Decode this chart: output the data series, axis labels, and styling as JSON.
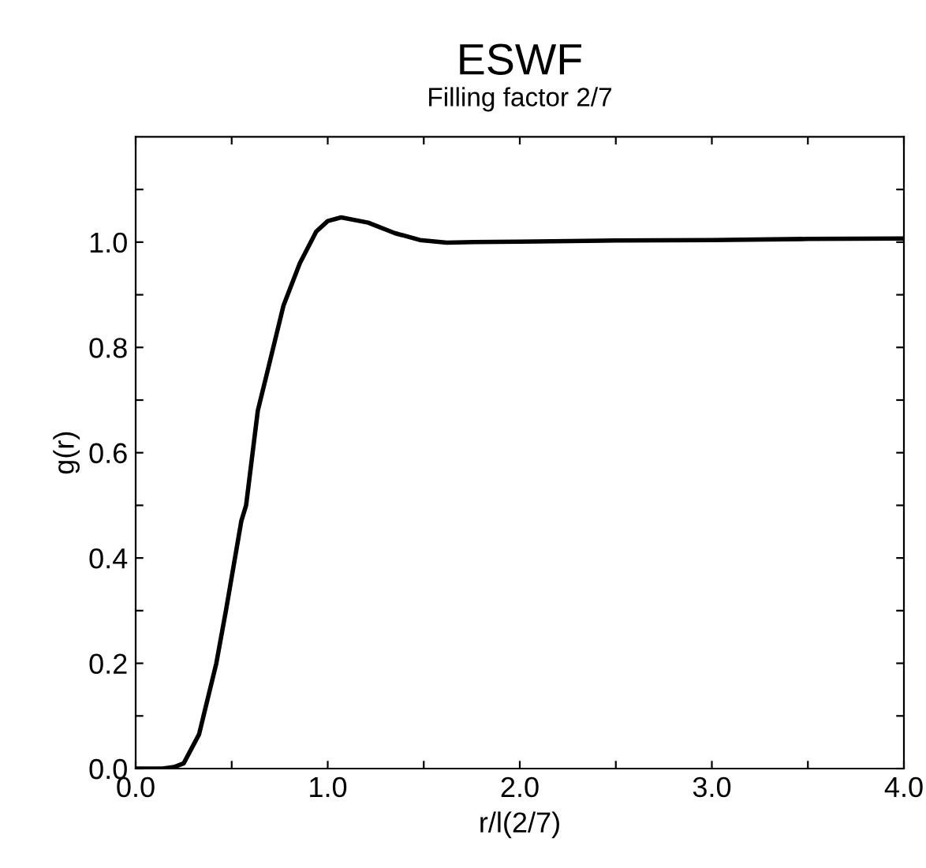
{
  "chart_data": {
    "type": "line",
    "title": "ESWF",
    "subtitle": "Filling factor 2/7",
    "xlabel": "r/l(2/7)",
    "ylabel": "g(r)",
    "x": [
      0.0,
      0.1,
      0.14,
      0.2,
      0.25,
      0.33,
      0.42,
      0.47,
      0.55,
      0.575,
      0.636,
      0.69,
      0.77,
      0.855,
      0.94,
      1.0,
      1.07,
      1.21,
      1.35,
      1.48,
      1.62,
      1.76,
      2.0,
      2.5,
      3.0,
      3.5,
      4.0
    ],
    "series": [
      {
        "color": "#000000",
        "values": [
          0.0,
          0.0,
          0.0,
          0.003,
          0.01,
          0.065,
          0.2,
          0.3,
          0.47,
          0.5,
          0.68,
          0.76,
          0.88,
          0.96,
          1.02,
          1.04,
          1.047,
          1.037,
          1.017,
          1.004,
          0.999,
          1.0,
          1.001,
          1.003,
          1.004,
          1.006,
          1.007
        ]
      }
    ],
    "xlim": [
      0,
      4
    ],
    "ylim": [
      0,
      1.2
    ],
    "xticks": [
      {
        "value": 0,
        "label": "0.0"
      },
      {
        "value": 0.5,
        "label": null
      },
      {
        "value": 1,
        "label": "1.0"
      },
      {
        "value": 1.5,
        "label": null
      },
      {
        "value": 2,
        "label": "2.0"
      },
      {
        "value": 2.5,
        "label": null
      },
      {
        "value": 3,
        "label": "3.0"
      },
      {
        "value": 3.5,
        "label": null
      },
      {
        "value": 4,
        "label": "4.0"
      }
    ],
    "yticks": [
      {
        "value": 0,
        "label": "0.0"
      },
      {
        "value": 0.1,
        "label": null
      },
      {
        "value": 0.2,
        "label": "0.2"
      },
      {
        "value": 0.3,
        "label": null
      },
      {
        "value": 0.4,
        "label": "0.4"
      },
      {
        "value": 0.5,
        "label": null
      },
      {
        "value": 0.6,
        "label": "0.6"
      },
      {
        "value": 0.7,
        "label": null
      },
      {
        "value": 0.8,
        "label": "0.8"
      },
      {
        "value": 0.9,
        "label": null
      },
      {
        "value": 1.0,
        "label": "1.0"
      },
      {
        "value": 1.1,
        "label": null
      }
    ],
    "grid": false,
    "legend": false,
    "marker": "none",
    "line_style": "solid"
  }
}
